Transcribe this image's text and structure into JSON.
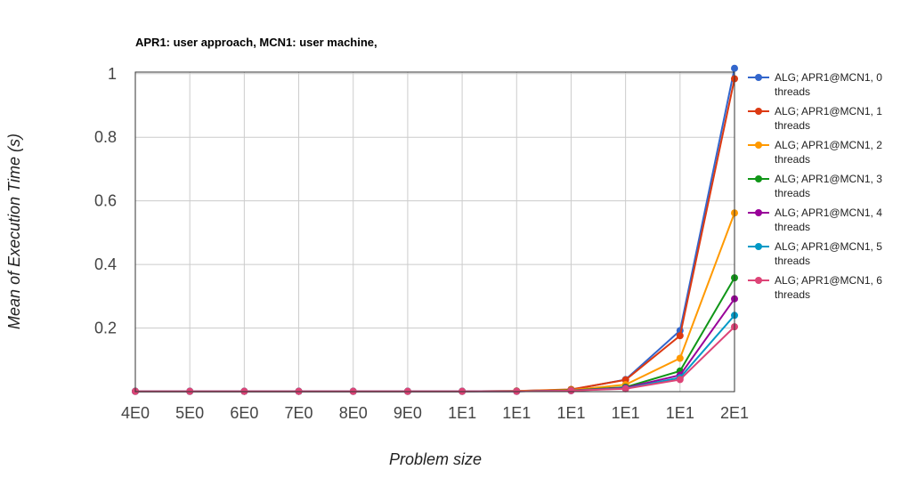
{
  "chart_data": {
    "type": "line",
    "title": "APR1: user approach, MCN1: user machine,",
    "xlabel": "Problem size",
    "ylabel": "Mean of Execution Time (s)",
    "categories": [
      "4E0",
      "5E0",
      "6E0",
      "7E0",
      "8E0",
      "9E0",
      "1E1",
      "1E1",
      "1E1",
      "1E1",
      "1E1",
      "2E1"
    ],
    "yticks": [
      "0.2",
      "0.4",
      "0.6",
      "0.8",
      "1"
    ],
    "ylim": [
      0,
      1.005
    ],
    "grid": true,
    "legend_position": "right",
    "series": [
      {
        "name": "ALG; APR1@MCN1, 0 threads",
        "color": "#3366cc",
        "values": [
          0.001,
          0.001,
          0.001,
          0.001,
          0.001,
          0.001,
          0.001,
          0.002,
          0.006,
          0.038,
          0.192,
          1.017
        ]
      },
      {
        "name": "ALG; APR1@MCN1, 1 threads",
        "color": "#dc3912",
        "values": [
          0.001,
          0.001,
          0.001,
          0.001,
          0.001,
          0.001,
          0.001,
          0.002,
          0.007,
          0.037,
          0.176,
          0.984
        ]
      },
      {
        "name": "ALG; APR1@MCN1, 2 threads",
        "color": "#ff9900",
        "values": [
          0.001,
          0.001,
          0.001,
          0.001,
          0.001,
          0.001,
          0.001,
          0.002,
          0.005,
          0.022,
          0.105,
          0.562
        ]
      },
      {
        "name": "ALG; APR1@MCN1, 3 threads",
        "color": "#109618",
        "values": [
          0.001,
          0.001,
          0.001,
          0.001,
          0.001,
          0.001,
          0.001,
          0.001,
          0.004,
          0.014,
          0.065,
          0.358
        ]
      },
      {
        "name": "ALG; APR1@MCN1, 4 threads",
        "color": "#990099",
        "values": [
          0.001,
          0.001,
          0.001,
          0.001,
          0.001,
          0.001,
          0.001,
          0.001,
          0.003,
          0.012,
          0.052,
          0.292
        ]
      },
      {
        "name": "ALG; APR1@MCN1, 5 threads",
        "color": "#0099c6",
        "values": [
          0.001,
          0.001,
          0.001,
          0.001,
          0.001,
          0.001,
          0.001,
          0.001,
          0.003,
          0.01,
          0.044,
          0.24
        ]
      },
      {
        "name": "ALG; APR1@MCN1, 6 threads",
        "color": "#dd4477",
        "values": [
          0.001,
          0.001,
          0.001,
          0.001,
          0.001,
          0.001,
          0.001,
          0.001,
          0.003,
          0.009,
          0.038,
          0.204
        ]
      }
    ]
  }
}
